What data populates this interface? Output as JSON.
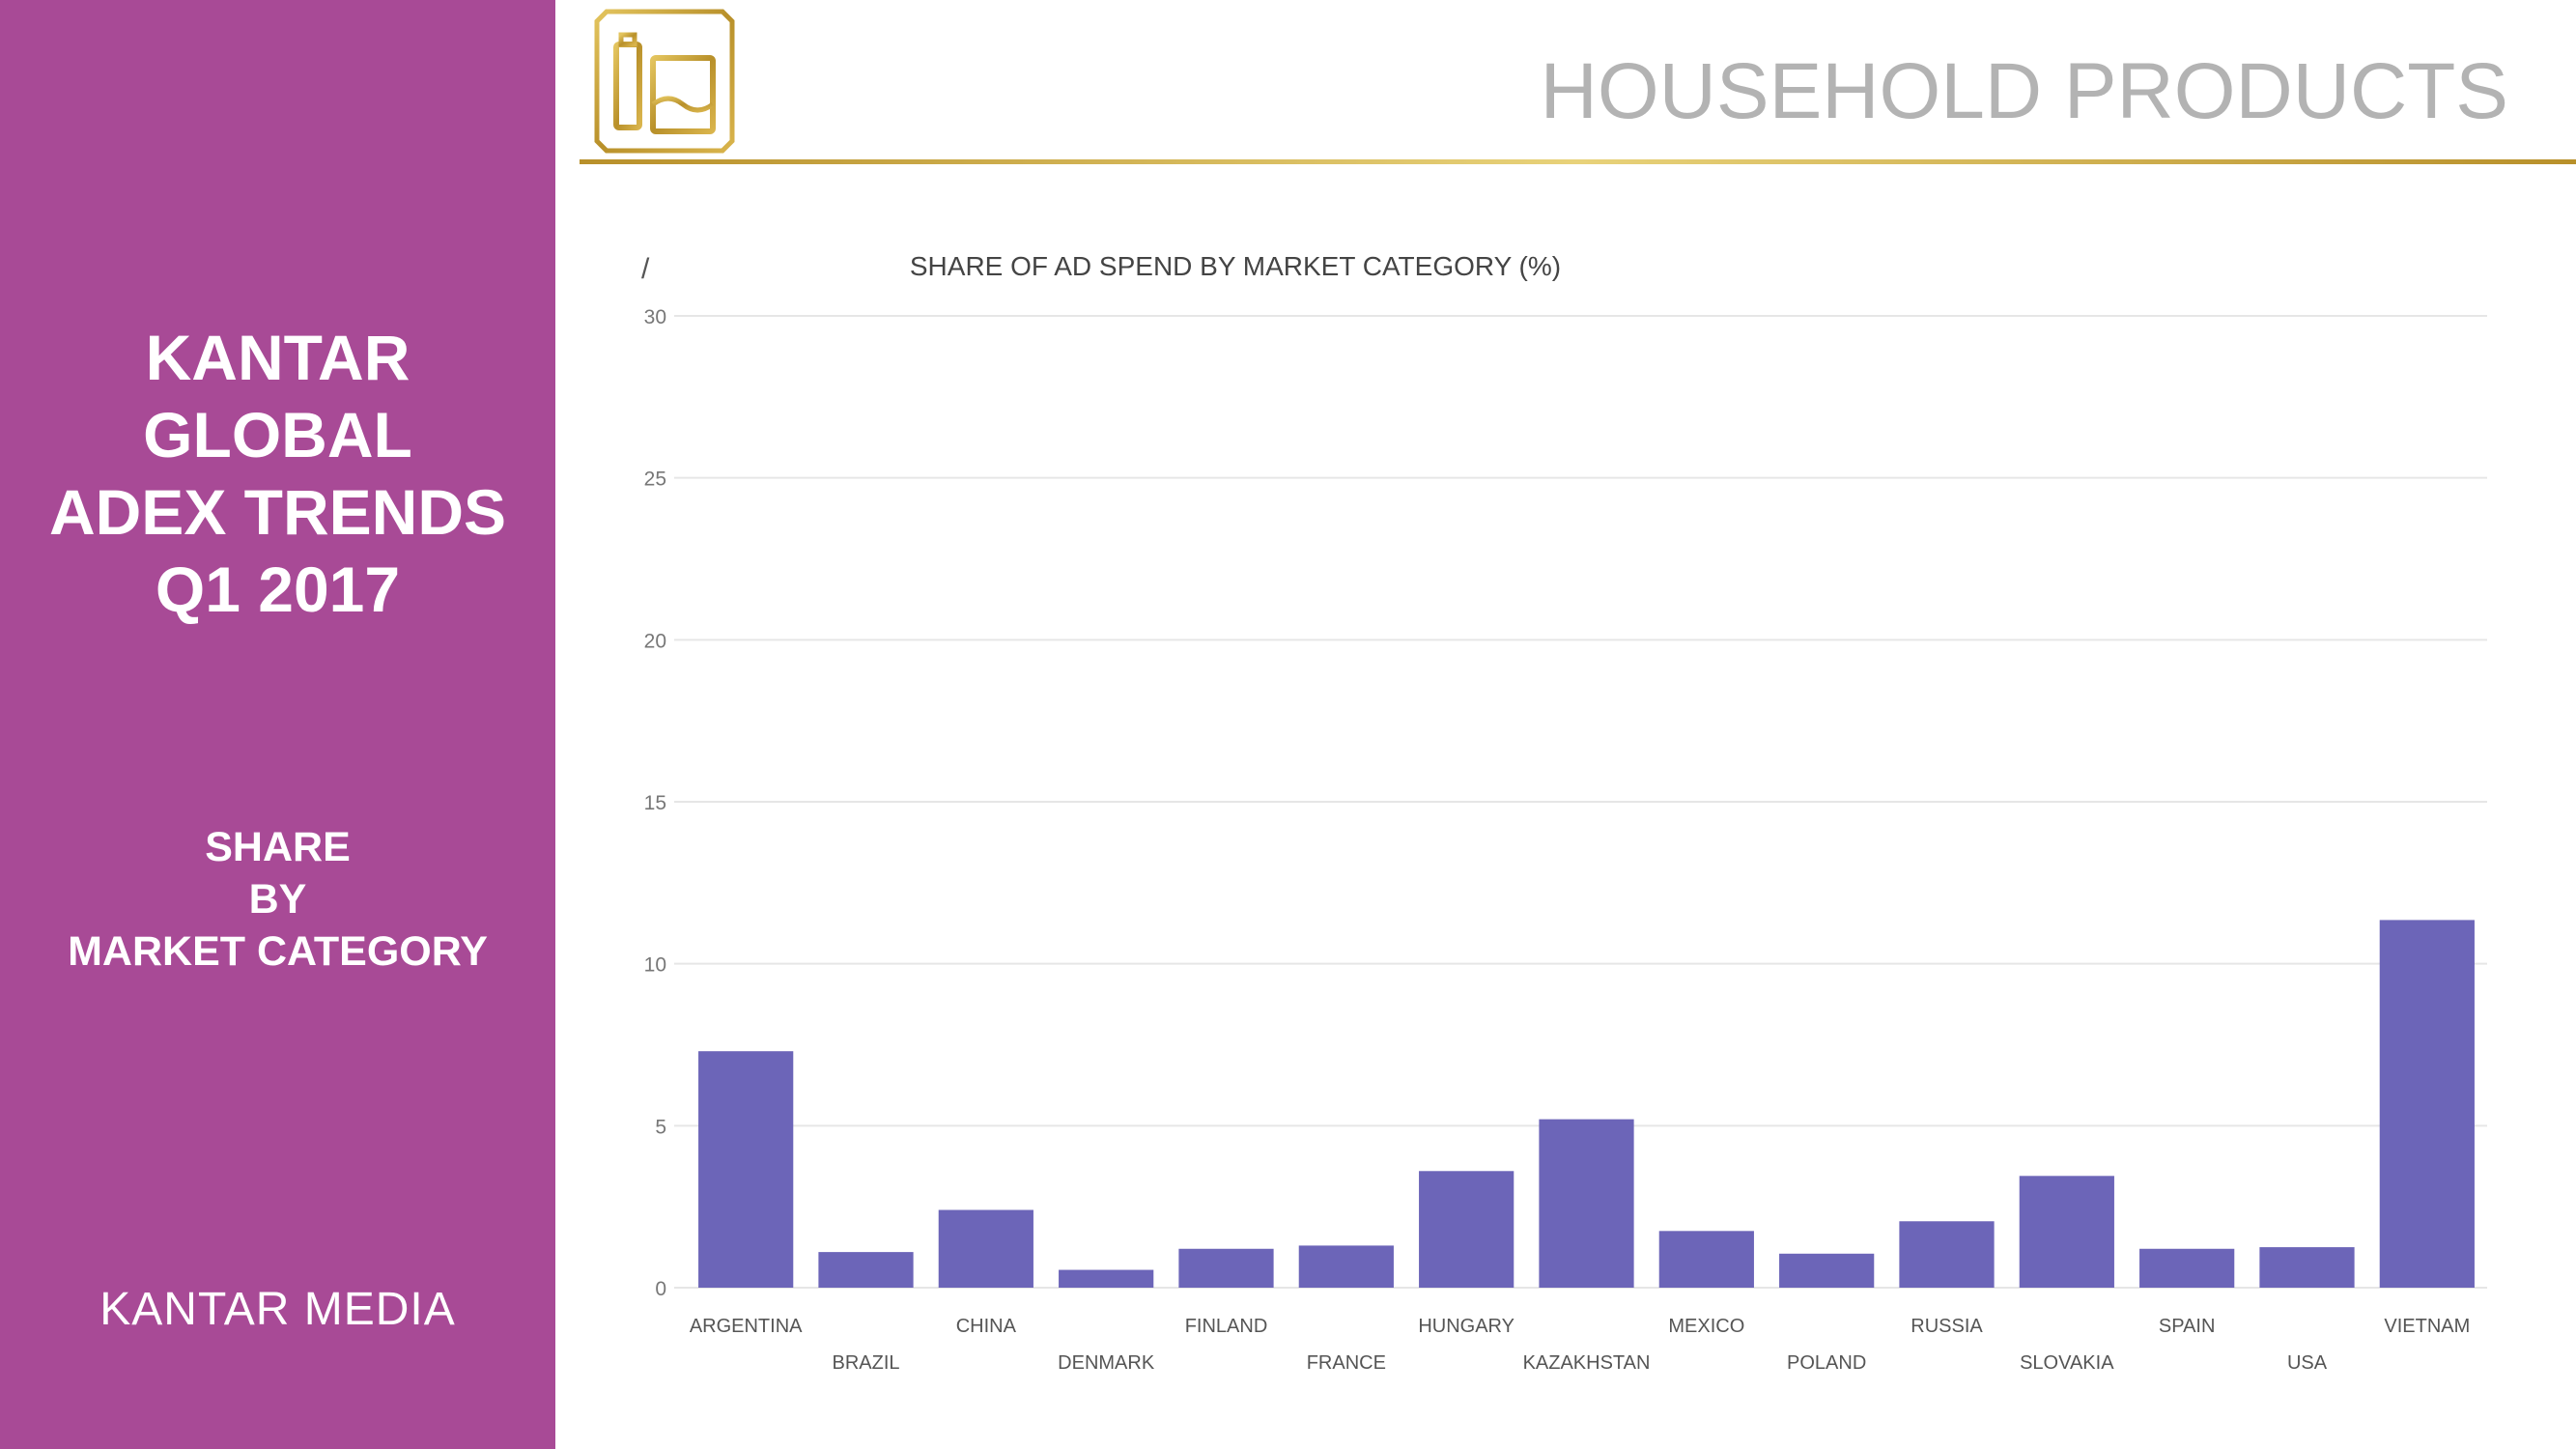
{
  "sidebar": {
    "title_lines": [
      "KANTAR",
      "GLOBAL",
      "ADEX TRENDS",
      "Q1 2017"
    ],
    "subtitle_lines": [
      "SHARE",
      "BY",
      "MARKET CATEGORY"
    ],
    "brand": "KANTAR MEDIA",
    "background_color": "#a84a96"
  },
  "header": {
    "icon": "household-products-icon",
    "title": "HOUSEHOLD PRODUCTS",
    "title_color": "#b3b3b3",
    "rule_color": "#c9a53f"
  },
  "chart_data": {
    "type": "bar",
    "title": "SHARE OF AD SPEND BY MARKET CATEGORY (%)",
    "corner_mark": "/",
    "categories": [
      "ARGENTINA",
      "BRAZIL",
      "CHINA",
      "DENMARK",
      "FINLAND",
      "FRANCE",
      "HUNGARY",
      "KAZAKHSTAN",
      "MEXICO",
      "POLAND",
      "RUSSIA",
      "SLOVAKIA",
      "SPAIN",
      "USA",
      "VIETNAM"
    ],
    "values": [
      7.3,
      1.1,
      2.4,
      0.55,
      1.2,
      1.3,
      3.6,
      5.2,
      1.75,
      1.05,
      2.05,
      3.45,
      1.2,
      1.25,
      11.35
    ],
    "yticks": [
      0,
      5,
      10,
      15,
      20,
      25,
      30
    ],
    "ylim": [
      0,
      30
    ],
    "xlabel": "",
    "ylabel": "",
    "grid": true,
    "bar_color": "#6c65b8",
    "grid_color": "#e6e6e6"
  }
}
